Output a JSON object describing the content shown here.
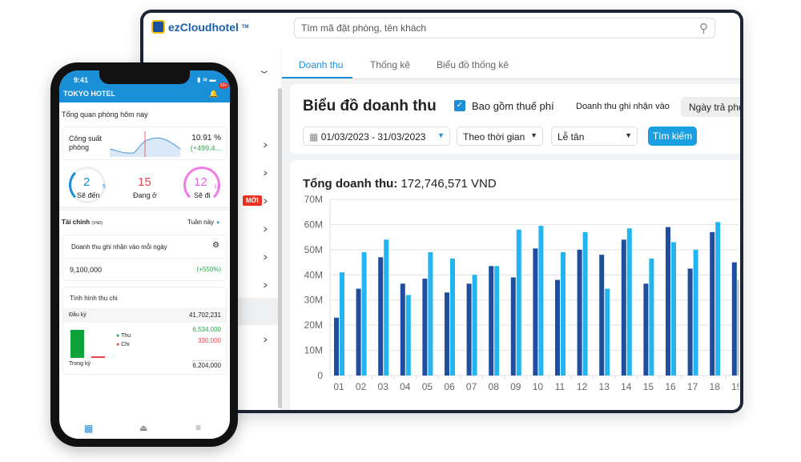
{
  "app": {
    "brand": "ezCloudhotel",
    "trademark": "TM",
    "search_placeholder": "Tìm mã đặt phòng, tên khách",
    "new_badge": "MỚI"
  },
  "tabs": [
    {
      "label": "Doanh thu",
      "active": true
    },
    {
      "label": "Thống kê"
    },
    {
      "label": "Biểu đồ thống kê"
    }
  ],
  "filters": {
    "title": "Biểu đồ doanh thu",
    "include_tax_label": "Bao gồm thuế phí",
    "include_tax": true,
    "recognize_label": "Doanh thu ghi nhận vào",
    "recognize_value": "Ngày trả phò",
    "date_range": "01/03/2023 - 31/03/2023",
    "group_by": "Theo thời gian",
    "staff": "Lễ tân",
    "search_button": "Tìm kiếm"
  },
  "summary": {
    "label": "Tổng doanh thu:",
    "value": "172,746,571 VND"
  },
  "chart_data": {
    "type": "bar",
    "categories": [
      "01",
      "02",
      "03",
      "04",
      "05",
      "06",
      "07",
      "08",
      "09",
      "10",
      "11",
      "12",
      "13",
      "14",
      "15",
      "16",
      "17",
      "18",
      "19"
    ],
    "series": [
      {
        "color": "#1f4e9e",
        "values": [
          23,
          34.5,
          47,
          36.5,
          38.5,
          33,
          36.5,
          43.5,
          39,
          50.5,
          38,
          50,
          48,
          54,
          36.5,
          59,
          42.5,
          57,
          45
        ]
      },
      {
        "color": "#22b5f0",
        "values": [
          41,
          49,
          54,
          32,
          49,
          46.5,
          40,
          43.5,
          58,
          59.5,
          49,
          57,
          34.5,
          58.5,
          46.5,
          53,
          50,
          61,
          38
        ]
      }
    ],
    "yticks": [
      "0",
      "10M",
      "20M",
      "30M",
      "40M",
      "50M",
      "60M",
      "70M"
    ],
    "ylim": [
      0,
      70
    ],
    "unit": "M VND",
    "grid": true
  },
  "phone": {
    "time": "9:41",
    "hotel": "TOKYO HOTEL",
    "notif": "10+",
    "overview_title": "Tổng quan phòng hôm nay",
    "occupancy_label": "Công suất phòng",
    "occupancy_value": "10.91 %",
    "occupancy_change": "(+499.4...",
    "arriving": {
      "value": "2",
      "total": "5",
      "label": "Sẽ đến"
    },
    "staying": {
      "value": "15",
      "label": "Đang ở"
    },
    "leaving": {
      "value": "12",
      "total": "12",
      "label": "Sẽ đi"
    },
    "finance_title": "Tài chính",
    "finance_unit": "(VND)",
    "period": "Tuần này",
    "daily_label": "Doanh thu ghi nhận vào mỗi ngày",
    "daily_value": "9,100,000",
    "daily_change": "(+550%)",
    "cash_title": "Tình hình thu chi",
    "opening_label": "Đầu kỳ",
    "opening_value": "41,702,231",
    "income_label": "Thu",
    "expense_label": "Chi",
    "income_value": "6,534,000",
    "expense_value": "330,000",
    "period_label": "Trong kỳ",
    "period_value": "6,204,000"
  }
}
